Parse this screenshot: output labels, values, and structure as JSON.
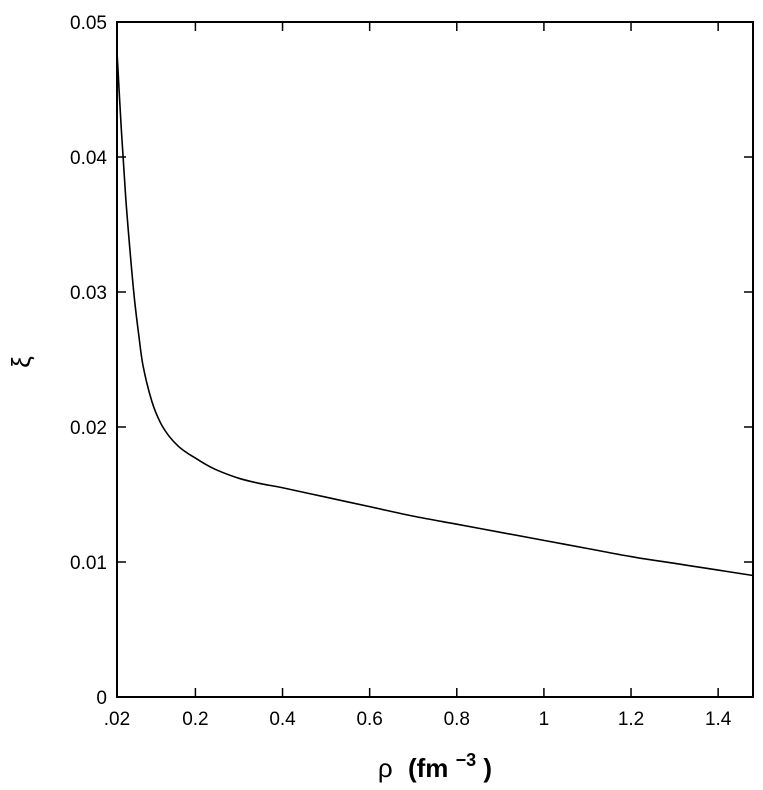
{
  "chart_data": {
    "type": "line",
    "title": "",
    "xlabel": {
      "symbol": "ρ",
      "unit_open": "(fm",
      "unit_exp": "−3",
      "unit_close": ")"
    },
    "ylabel": "ξ",
    "xlim": [
      0.02,
      1.48
    ],
    "ylim": [
      0,
      0.05
    ],
    "x_ticks": [
      {
        "value": 0.02,
        "label": ".02"
      },
      {
        "value": 0.2,
        "label": "0.2"
      },
      {
        "value": 0.4,
        "label": "0.4"
      },
      {
        "value": 0.6,
        "label": "0.6"
      },
      {
        "value": 0.8,
        "label": "0.8"
      },
      {
        "value": 1.0,
        "label": "1"
      },
      {
        "value": 1.2,
        "label": "1.2"
      },
      {
        "value": 1.4,
        "label": "1.4"
      }
    ],
    "y_ticks": [
      {
        "value": 0,
        "label": "0"
      },
      {
        "value": 0.01,
        "label": "0.01"
      },
      {
        "value": 0.02,
        "label": "0.02"
      },
      {
        "value": 0.03,
        "label": "0.03"
      },
      {
        "value": 0.04,
        "label": "0.04"
      },
      {
        "value": 0.05,
        "label": "0.05"
      }
    ],
    "grid": false,
    "colors": {
      "line": "#000000",
      "axes": "#000000"
    },
    "series": [
      {
        "x": [
          0.02,
          0.03,
          0.04,
          0.05,
          0.06,
          0.07,
          0.08,
          0.1,
          0.12,
          0.14,
          0.16,
          0.18,
          0.2,
          0.22,
          0.25,
          0.3,
          0.35,
          0.4,
          0.5,
          0.6,
          0.7,
          0.8,
          0.9,
          1.0,
          1.1,
          1.2,
          1.3,
          1.4,
          1.48
        ],
        "y": [
          0.0478,
          0.042,
          0.037,
          0.033,
          0.0295,
          0.0268,
          0.0245,
          0.0219,
          0.0203,
          0.0193,
          0.0186,
          0.0181,
          0.0177,
          0.0173,
          0.0168,
          0.0162,
          0.0158,
          0.0155,
          0.0148,
          0.0141,
          0.0134,
          0.0128,
          0.0122,
          0.0116,
          0.011,
          0.0104,
          0.0099,
          0.0094,
          0.009
        ]
      }
    ]
  }
}
